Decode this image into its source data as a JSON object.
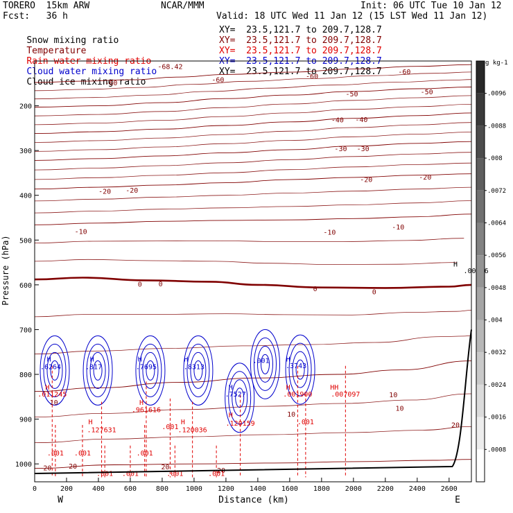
{
  "header": {
    "model": "TORERO  15km ARW",
    "org": "NCAR/MMM",
    "init": "Init: 06 UTC Tue 10 Jan 12",
    "fcst": "Fcst:   36 h",
    "valid": "Valid: 18 UTC Wed 11 Jan 12 (15 LST Wed 11 Jan 12)",
    "fields": [
      {
        "name": "Snow mixing ratio",
        "color": "#000000",
        "xy": "XY=  23.5,121.7 to 209.7,128.7"
      },
      {
        "name": "Temperature",
        "color": "#800000",
        "xy": "XY=  23.5,121.7 to 209.7,128.7"
      },
      {
        "name": "Rain water mixing ratio",
        "color": "#e00000",
        "xy": "XY=  23.5,121.7 to 209.7,128.7"
      },
      {
        "name": "Cloud water mixing ratio",
        "color": "#0000cc",
        "xy": "XY=  23.5,121.7 to 209.7,128.7"
      },
      {
        "name": "Cloud ice mixing ratio",
        "color": "#000000",
        "xy": "XY=  23.5,121.7 to 209.7,128.7"
      }
    ]
  },
  "chart_data": {
    "type": "cross-section contour",
    "xlabel": "Distance (km)",
    "ylabel": "Pressure (hPa)",
    "xlim": [
      0,
      2740
    ],
    "ylim": [
      1040,
      100
    ],
    "x_ticks": [
      0,
      200,
      400,
      600,
      800,
      1000,
      1200,
      1400,
      1600,
      1800,
      2000,
      2200,
      2400,
      2600
    ],
    "y_ticks": [
      200,
      300,
      400,
      500,
      600,
      700,
      800,
      900,
      1000
    ],
    "endpoint_labels": {
      "left": "W",
      "right": "E"
    },
    "colorbar": {
      "unit": "g kg-1",
      "ticks": [
        ".0096",
        ".0088",
        ".008",
        ".0072",
        ".0064",
        ".0056",
        ".0048",
        ".004",
        ".0032",
        ".0024",
        ".0016",
        ".0008"
      ],
      "ticks_value": [
        0.0096,
        0.0088,
        0.008,
        0.0072,
        0.0064,
        0.0056,
        0.0048,
        0.004,
        0.0032,
        0.0024,
        0.0016,
        0.0008
      ]
    },
    "temperature_isotherms": [
      {
        "value": -60,
        "points": [
          [
            0,
            148
          ],
          [
            300,
            145
          ],
          [
            600,
            142
          ],
          [
            900,
            136
          ],
          [
            1200,
            130
          ],
          [
            1600,
            125
          ],
          [
            2000,
            118
          ],
          [
            2400,
            112
          ],
          [
            2740,
            108
          ]
        ]
      },
      {
        "value": -50,
        "points": [
          [
            0,
            203
          ],
          [
            400,
            200
          ],
          [
            800,
            193
          ],
          [
            1200,
            184
          ],
          [
            1600,
            176
          ],
          [
            2000,
            168
          ],
          [
            2400,
            162
          ],
          [
            2740,
            158
          ]
        ]
      },
      {
        "value": -40,
        "points": [
          [
            0,
            262
          ],
          [
            400,
            258
          ],
          [
            800,
            252
          ],
          [
            1200,
            244
          ],
          [
            1600,
            236
          ],
          [
            2000,
            228
          ],
          [
            2400,
            222
          ],
          [
            2740,
            216
          ]
        ]
      },
      {
        "value": -30,
        "points": [
          [
            0,
            322
          ],
          [
            400,
            318
          ],
          [
            800,
            312
          ],
          [
            1200,
            305
          ],
          [
            1600,
            298
          ],
          [
            2000,
            290
          ],
          [
            2400,
            284
          ],
          [
            2740,
            280
          ]
        ]
      },
      {
        "value": -20,
        "points": [
          [
            0,
            386
          ],
          [
            400,
            382
          ],
          [
            800,
            377
          ],
          [
            1200,
            372
          ],
          [
            1600,
            365
          ],
          [
            2000,
            360
          ],
          [
            2400,
            355
          ],
          [
            2740,
            352
          ]
        ]
      },
      {
        "value": -10,
        "points": [
          [
            0,
            466
          ],
          [
            400,
            462
          ],
          [
            800,
            458
          ],
          [
            1200,
            456
          ],
          [
            1600,
            455
          ],
          [
            2000,
            452
          ],
          [
            2400,
            448
          ],
          [
            2740,
            442
          ]
        ]
      },
      {
        "value": 0,
        "points": [
          [
            0,
            588
          ],
          [
            300,
            584
          ],
          [
            700,
            590
          ],
          [
            1100,
            593
          ],
          [
            1400,
            600
          ],
          [
            1800,
            606
          ],
          [
            2200,
            607
          ],
          [
            2600,
            604
          ],
          [
            2740,
            600
          ]
        ]
      },
      {
        "value": 10,
        "points": [
          [
            0,
            838
          ],
          [
            400,
            830
          ],
          [
            900,
            818
          ],
          [
            1400,
            808
          ],
          [
            1900,
            800
          ],
          [
            2300,
            790
          ],
          [
            2740,
            770
          ]
        ]
      },
      {
        "value": 20,
        "points": [
          [
            0,
            1010
          ],
          [
            500,
            1002
          ],
          [
            1000,
            1000
          ],
          [
            1500,
            998
          ],
          [
            2000,
            995
          ],
          [
            2500,
            992
          ],
          [
            2740,
            990
          ]
        ]
      }
    ],
    "isotherm_labels": [
      {
        "text": "-68.42",
        "x": 850,
        "y": 112
      },
      {
        "text": "-60",
        "x": 480,
        "y": 148
      },
      {
        "text": "-60",
        "x": 1150,
        "y": 141
      },
      {
        "text": "-60",
        "x": 1740,
        "y": 133
      },
      {
        "text": "-60",
        "x": 2320,
        "y": 123
      },
      {
        "text": "-50",
        "x": 1990,
        "y": 173
      },
      {
        "text": "-50",
        "x": 2460,
        "y": 168
      },
      {
        "text": "-40",
        "x": 1900,
        "y": 231
      },
      {
        "text": "-40",
        "x": 2050,
        "y": 230
      },
      {
        "text": "-30",
        "x": 1920,
        "y": 295
      },
      {
        "text": "-30",
        "x": 2060,
        "y": 295
      },
      {
        "text": "-20",
        "x": 440,
        "y": 390
      },
      {
        "text": "-20",
        "x": 610,
        "y": 388
      },
      {
        "text": "-20",
        "x": 2080,
        "y": 364
      },
      {
        "text": "-20",
        "x": 2450,
        "y": 359
      },
      {
        "text": "-10",
        "x": 290,
        "y": 480
      },
      {
        "text": "-10",
        "x": 1850,
        "y": 482
      },
      {
        "text": "-10",
        "x": 2280,
        "y": 470
      },
      {
        "text": "0",
        "x": 660,
        "y": 598
      },
      {
        "text": "0",
        "x": 790,
        "y": 597
      },
      {
        "text": "0",
        "x": 1760,
        "y": 608
      },
      {
        "text": "0",
        "x": 2130,
        "y": 615
      },
      {
        "text": "10",
        "x": 2250,
        "y": 845
      },
      {
        "text": "10",
        "x": 2290,
        "y": 875
      },
      {
        "text": "10",
        "x": 1610,
        "y": 888
      },
      {
        "text": "10",
        "x": 120,
        "y": 862
      },
      {
        "text": "20",
        "x": 2640,
        "y": 912
      },
      {
        "text": "20",
        "x": 80,
        "y": 1008
      },
      {
        "text": "20",
        "x": 240,
        "y": 1004
      },
      {
        "text": "20",
        "x": 820,
        "y": 1006
      },
      {
        "text": "20",
        "x": 1170,
        "y": 1014
      }
    ],
    "cloud_water_maxima": [
      {
        "text": ".6264",
        "x": 100,
        "y": 782
      },
      {
        "text": ".817",
        "x": 370,
        "y": 782
      },
      {
        "text": ".7695",
        "x": 700,
        "y": 782
      },
      {
        "text": ".8313",
        "x": 1000,
        "y": 782
      },
      {
        "text": ".7527",
        "x": 1260,
        "y": 843
      },
      {
        "text": ".001",
        "x": 1420,
        "y": 768
      },
      {
        "text": ".3743",
        "x": 1640,
        "y": 780
      }
    ],
    "rain_water_maxima": [
      {
        "text": ".011245",
        "x": 110,
        "y": 843
      },
      {
        "text": ".961616",
        "x": 700,
        "y": 878
      },
      {
        "text": ".127631",
        "x": 420,
        "y": 923
      },
      {
        "text": ".120036",
        "x": 990,
        "y": 923
      },
      {
        "text": ".120159",
        "x": 1290,
        "y": 908
      },
      {
        "text": ".001",
        "x": 850,
        "y": 916
      },
      {
        "text": ".001900",
        "x": 1650,
        "y": 843
      },
      {
        "text": ".007097",
        "x": 1950,
        "y": 843
      },
      {
        "text": ".001",
        "x": 1700,
        "y": 905
      },
      {
        "text": ".001",
        "x": 130,
        "y": 975
      },
      {
        "text": ".001",
        "x": 300,
        "y": 975
      },
      {
        "text": ".001",
        "x": 690,
        "y": 975
      },
      {
        "text": ".001",
        "x": 440,
        "y": 1021
      },
      {
        "text": ".001",
        "x": 600,
        "y": 1021
      },
      {
        "text": ".001",
        "x": 880,
        "y": 1021
      },
      {
        "text": ".001",
        "x": 1140,
        "y": 1021
      }
    ],
    "high_markers": [
      {
        "text": "H",
        "x": 90,
        "y": 765,
        "color": "#0000cc"
      },
      {
        "text": "H",
        "x": 360,
        "y": 765,
        "color": "#0000cc"
      },
      {
        "text": "H",
        "x": 660,
        "y": 765,
        "color": "#0000cc"
      },
      {
        "text": "H",
        "x": 950,
        "y": 765,
        "color": "#0000cc"
      },
      {
        "text": "H",
        "x": 1230,
        "y": 828,
        "color": "#0000cc"
      },
      {
        "text": "H",
        "x": 1590,
        "y": 765,
        "color": "#0000cc"
      },
      {
        "text": "H",
        "x": 80,
        "y": 828,
        "color": "#e00000"
      },
      {
        "text": "H",
        "x": 670,
        "y": 862,
        "color": "#e00000"
      },
      {
        "text": "H",
        "x": 350,
        "y": 905,
        "color": "#e00000"
      },
      {
        "text": "H",
        "x": 930,
        "y": 905,
        "color": "#e00000"
      },
      {
        "text": "H",
        "x": 1230,
        "y": 890,
        "color": "#e00000"
      },
      {
        "text": "H",
        "x": 1590,
        "y": 828,
        "color": "#e00000"
      },
      {
        "text": "HH",
        "x": 1880,
        "y": 828,
        "color": "#e00000"
      },
      {
        "text": "H",
        "x": 2640,
        "y": 553,
        "color": "#000000"
      }
    ],
    "colorbar_edge_label": {
      "text": ".00006",
      "x": 2690,
      "y": 568
    }
  }
}
